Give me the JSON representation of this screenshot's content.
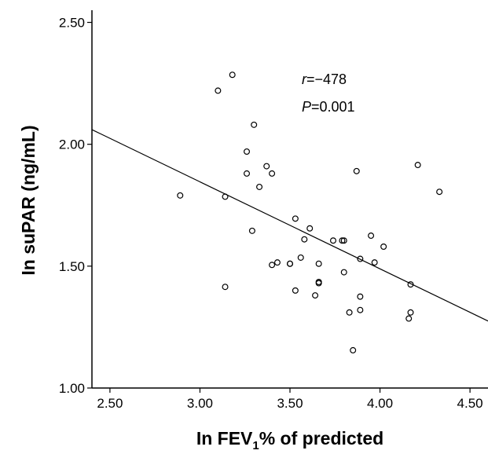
{
  "chart_data": {
    "type": "scatter",
    "title": "",
    "xlabel_prefix": "In FEV",
    "xlabel_sub": "1",
    "xlabel_suffix": "% of predicted",
    "ylabel": "In suPAR (ng/mL)",
    "xlim": [
      2.4,
      4.6
    ],
    "ylim": [
      1.0,
      2.55
    ],
    "x_ticks": [
      2.5,
      3.0,
      3.5,
      4.0,
      4.5
    ],
    "x_tick_labels": [
      "2.50",
      "3.00",
      "3.50",
      "4.00",
      "4.50"
    ],
    "y_ticks": [
      1.0,
      1.5,
      2.0,
      2.5
    ],
    "y_tick_labels": [
      "1.00",
      "1.50",
      "2.00",
      "2.50"
    ],
    "grid": false,
    "annotation": {
      "r_symbol": "r",
      "r_value": "=−478",
      "p_symbol": "P",
      "p_value": "=0.001"
    },
    "regression_line": {
      "x": [
        2.4,
        4.6
      ],
      "y": [
        2.06,
        1.275
      ]
    },
    "points": {
      "x": [
        2.89,
        3.1,
        3.18,
        3.14,
        3.14,
        3.26,
        3.26,
        3.29,
        3.3,
        3.33,
        3.37,
        3.4,
        3.4,
        3.43,
        3.5,
        3.5,
        3.53,
        3.53,
        3.56,
        3.58,
        3.61,
        3.64,
        3.66,
        3.66,
        3.66,
        3.74,
        3.79,
        3.8,
        3.8,
        3.83,
        3.85,
        3.87,
        3.89,
        3.89,
        3.89,
        3.95,
        3.97,
        4.02,
        4.16,
        4.17,
        4.17,
        4.21,
        4.33
      ],
      "y": [
        1.79,
        2.22,
        2.285,
        1.785,
        1.415,
        1.97,
        1.88,
        1.645,
        2.08,
        1.825,
        1.91,
        1.88,
        1.505,
        1.515,
        1.51,
        1.51,
        1.695,
        1.4,
        1.535,
        1.61,
        1.655,
        1.38,
        1.51,
        1.43,
        1.435,
        1.605,
        1.605,
        1.605,
        1.475,
        1.31,
        1.155,
        1.89,
        1.53,
        1.375,
        1.32,
        1.625,
        1.515,
        1.58,
        1.285,
        1.31,
        1.425,
        1.915,
        1.805
      ]
    }
  }
}
